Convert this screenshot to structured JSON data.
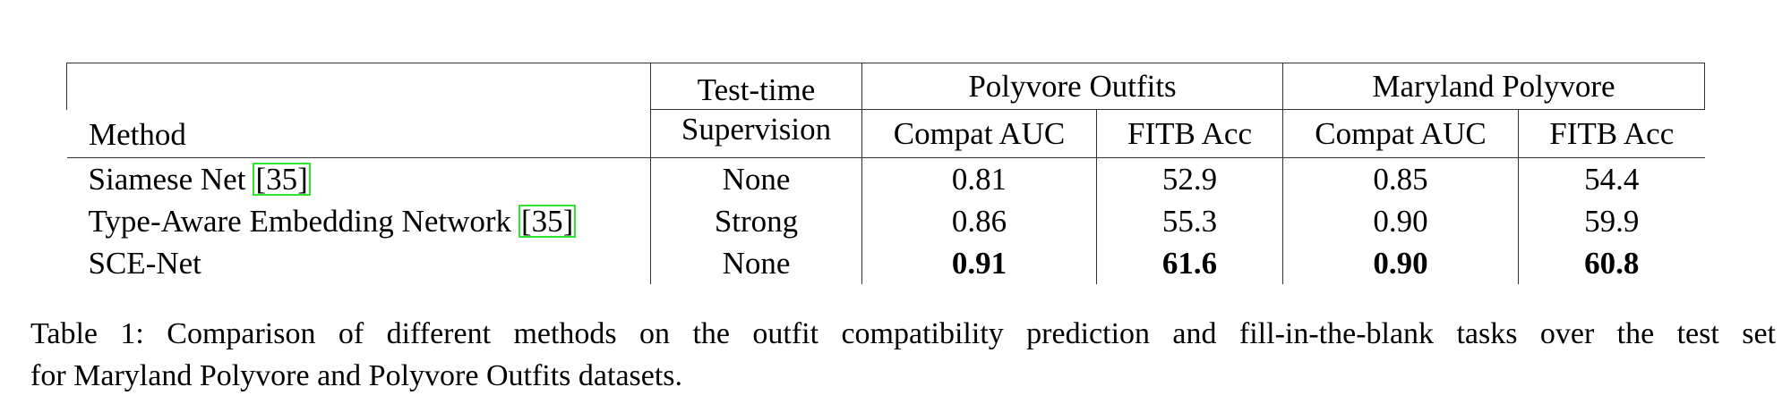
{
  "table": {
    "header": {
      "method": "Method",
      "supervision": [
        "Test-time",
        "Supervision"
      ],
      "groups": [
        "Polyvore Outfits",
        "Maryland Polyvore"
      ],
      "metrics": [
        "Compat AUC",
        "FITB Acc",
        "Compat AUC",
        "FITB Acc"
      ]
    },
    "rows": [
      {
        "method": "Siamese Net",
        "ref": "[35]",
        "supervision": "None",
        "values": [
          "0.81",
          "52.9",
          "0.85",
          "54.4"
        ]
      },
      {
        "method": "Type-Aware Embedding Network",
        "ref": "[35]",
        "supervision": "Strong",
        "values": [
          "0.86",
          "55.3",
          "0.90",
          "59.9"
        ]
      },
      {
        "method": "SCE-Net",
        "supervision": "None",
        "values": [
          "0.91",
          "61.6",
          "0.90",
          "60.8"
        ]
      }
    ]
  },
  "caption": [
    "Table 1:  Comparison of different methods on the outfit compatibility prediction and fill-in-the-blank tasks over the test set",
    "for Maryland Polyvore and Polyvore Outfits datasets."
  ]
}
